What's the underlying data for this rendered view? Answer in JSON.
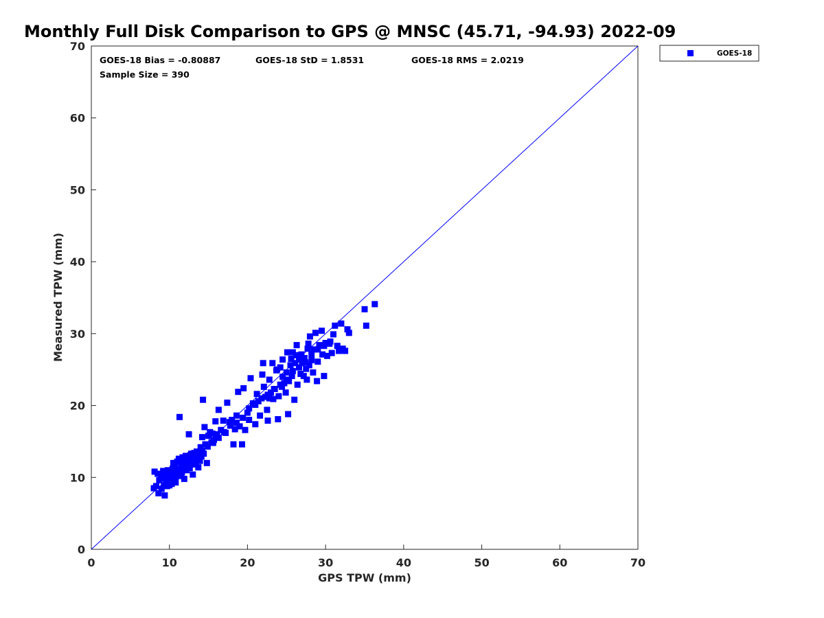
{
  "chart_data": {
    "type": "scatter",
    "title": "Monthly Full Disk Comparison to GPS @ MNSC (45.71, -94.93) 2022-09",
    "xlabel": "GPS TPW (mm)",
    "ylabel": "Measured TPW (mm)",
    "xlim": [
      0,
      70
    ],
    "ylim": [
      0,
      70
    ],
    "xticks": [
      "0",
      "10",
      "20",
      "30",
      "40",
      "50",
      "60",
      "70"
    ],
    "yticks": [
      "0",
      "10",
      "20",
      "30",
      "40",
      "50",
      "60",
      "70"
    ],
    "grid": false,
    "legend_position": "outside-top-right",
    "stats": {
      "bias": "GOES-18 Bias = -0.80887",
      "std": "GOES-18 StD = 1.8531",
      "rms": "GOES-18 RMS = 2.0219",
      "sample": "Sample Size = 390"
    },
    "reference_line": {
      "name": "1:1",
      "color": "#0000ff",
      "x": [
        0,
        70
      ],
      "y": [
        0,
        70
      ]
    },
    "series": [
      {
        "name": "GOES-18",
        "color": "#0000ff",
        "marker": "square",
        "points": [
          [
            8.0,
            8.5
          ],
          [
            8.1,
            10.8
          ],
          [
            8.3,
            8.8
          ],
          [
            8.5,
            10.5
          ],
          [
            8.6,
            7.8
          ],
          [
            8.7,
            9.6
          ],
          [
            8.9,
            10.2
          ],
          [
            9.0,
            8.4
          ],
          [
            9.1,
            9.9
          ],
          [
            9.2,
            10.9
          ],
          [
            9.3,
            8.9
          ],
          [
            9.4,
            7.5
          ],
          [
            9.5,
            10.6
          ],
          [
            9.6,
            9.3
          ],
          [
            9.7,
            8.8
          ],
          [
            9.8,
            10.1
          ],
          [
            9.9,
            9.6
          ],
          [
            10.0,
            8.9
          ],
          [
            10.1,
            9.8
          ],
          [
            10.2,
            10.4
          ],
          [
            10.3,
            9.1
          ],
          [
            10.4,
            11.2
          ],
          [
            10.5,
            9.6
          ],
          [
            10.6,
            10.8
          ],
          [
            10.7,
            11.8
          ],
          [
            10.8,
            9.3
          ],
          [
            10.9,
            10.6
          ],
          [
            11.0,
            12.2
          ],
          [
            11.1,
            11.1
          ],
          [
            11.2,
            10.2
          ],
          [
            11.3,
            18.4
          ],
          [
            11.4,
            12.4
          ],
          [
            11.5,
            11.6
          ],
          [
            11.6,
            10.7
          ],
          [
            11.7,
            12.8
          ],
          [
            11.8,
            11.4
          ],
          [
            11.9,
            9.8
          ],
          [
            12.0,
            12.0
          ],
          [
            12.1,
            13.0
          ],
          [
            12.2,
            11.7
          ],
          [
            12.3,
            12.6
          ],
          [
            12.5,
            16.0
          ],
          [
            12.6,
            11.3
          ],
          [
            12.7,
            13.1
          ],
          [
            12.8,
            12.2
          ],
          [
            12.9,
            12.9
          ],
          [
            13.0,
            10.4
          ],
          [
            13.2,
            13.4
          ],
          [
            13.3,
            12.1
          ],
          [
            13.4,
            11.9
          ],
          [
            13.5,
            13.6
          ],
          [
            13.6,
            12.6
          ],
          [
            13.7,
            11.4
          ],
          [
            13.8,
            13.1
          ],
          [
            13.9,
            12.3
          ],
          [
            14.0,
            14.2
          ],
          [
            14.1,
            12.9
          ],
          [
            14.2,
            15.6
          ],
          [
            14.3,
            20.8
          ],
          [
            14.4,
            13.3
          ],
          [
            14.5,
            17.0
          ],
          [
            14.6,
            14.6
          ],
          [
            14.8,
            12.0
          ],
          [
            15.0,
            15.8
          ],
          [
            15.2,
            16.3
          ],
          [
            15.4,
            14.9
          ],
          [
            15.5,
            16.1
          ],
          [
            15.7,
            15.2
          ],
          [
            15.9,
            17.8
          ],
          [
            16.1,
            16.0
          ],
          [
            16.3,
            19.4
          ],
          [
            16.6,
            16.6
          ],
          [
            16.9,
            17.9
          ],
          [
            17.2,
            16.2
          ],
          [
            17.4,
            20.4
          ],
          [
            17.7,
            17.7
          ],
          [
            18.0,
            18.0
          ],
          [
            18.2,
            14.6
          ],
          [
            18.4,
            16.7
          ],
          [
            18.6,
            18.6
          ],
          [
            18.8,
            21.9
          ],
          [
            19.0,
            17.1
          ],
          [
            19.3,
            14.6
          ],
          [
            19.5,
            22.4
          ],
          [
            19.7,
            16.6
          ],
          [
            20.0,
            19.0
          ],
          [
            20.2,
            18.0
          ],
          [
            20.4,
            23.8
          ],
          [
            20.7,
            20.3
          ],
          [
            21.0,
            17.4
          ],
          [
            21.2,
            21.6
          ],
          [
            21.4,
            20.6
          ],
          [
            21.6,
            18.6
          ],
          [
            21.9,
            24.3
          ],
          [
            22.0,
            25.9
          ],
          [
            22.1,
            22.6
          ],
          [
            22.3,
            21.2
          ],
          [
            22.5,
            19.4
          ],
          [
            22.6,
            17.9
          ],
          [
            22.8,
            23.6
          ],
          [
            23.0,
            21.8
          ],
          [
            23.2,
            25.9
          ],
          [
            23.3,
            20.9
          ],
          [
            23.5,
            22.3
          ],
          [
            23.7,
            24.9
          ],
          [
            23.9,
            18.1
          ],
          [
            24.0,
            21.3
          ],
          [
            24.2,
            25.3
          ],
          [
            24.4,
            22.6
          ],
          [
            24.5,
            26.4
          ],
          [
            24.7,
            23.1
          ],
          [
            24.9,
            21.8
          ],
          [
            25.0,
            24.6
          ],
          [
            25.1,
            27.4
          ],
          [
            25.2,
            18.8
          ],
          [
            25.3,
            23.4
          ],
          [
            25.5,
            25.6
          ],
          [
            25.7,
            24.1
          ],
          [
            25.8,
            27.4
          ],
          [
            26.0,
            20.8
          ],
          [
            26.1,
            25.9
          ],
          [
            26.3,
            28.4
          ],
          [
            26.4,
            22.9
          ],
          [
            26.6,
            26.4
          ],
          [
            26.8,
            24.4
          ],
          [
            26.9,
            27.1
          ],
          [
            27.0,
            25.9
          ],
          [
            27.2,
            24.1
          ],
          [
            27.3,
            26.6
          ],
          [
            27.5,
            25.1
          ],
          [
            27.6,
            23.6
          ],
          [
            27.7,
            27.9
          ],
          [
            27.9,
            25.6
          ],
          [
            28.0,
            29.6
          ],
          [
            28.2,
            26.3
          ],
          [
            28.4,
            24.6
          ],
          [
            28.5,
            27.8
          ],
          [
            28.7,
            30.1
          ],
          [
            28.9,
            23.4
          ],
          [
            29.0,
            26.1
          ],
          [
            29.2,
            28.4
          ],
          [
            29.5,
            30.4
          ],
          [
            29.6,
            27.1
          ],
          [
            29.8,
            24.1
          ],
          [
            30.0,
            28.7
          ],
          [
            30.2,
            26.9
          ],
          [
            30.5,
            28.6
          ],
          [
            30.8,
            27.3
          ],
          [
            31.0,
            29.9
          ],
          [
            31.2,
            31.1
          ],
          [
            31.5,
            28.3
          ],
          [
            31.7,
            27.6
          ],
          [
            32.0,
            31.4
          ],
          [
            32.2,
            27.9
          ],
          [
            32.5,
            27.6
          ],
          [
            32.8,
            30.6
          ],
          [
            33.0,
            30.1
          ],
          [
            35.0,
            33.4
          ],
          [
            35.2,
            31.1
          ],
          [
            36.3,
            34.1
          ],
          [
            9.5,
            9.0
          ],
          [
            10.2,
            9.5
          ],
          [
            10.8,
            10.1
          ],
          [
            11.5,
            10.5
          ],
          [
            12.2,
            11.0
          ],
          [
            13.0,
            11.8
          ],
          [
            9.8,
            11.0
          ],
          [
            10.5,
            12.0
          ],
          [
            11.2,
            12.6
          ],
          [
            12.0,
            12.4
          ],
          [
            12.8,
            13.3
          ],
          [
            13.5,
            12.8
          ],
          [
            14.2,
            13.7
          ],
          [
            14.9,
            14.3
          ],
          [
            15.6,
            14.8
          ],
          [
            16.3,
            15.5
          ],
          [
            17.0,
            16.3
          ],
          [
            17.8,
            17.2
          ],
          [
            18.6,
            17.6
          ],
          [
            19.4,
            18.3
          ],
          [
            20.2,
            19.6
          ],
          [
            21.0,
            20.1
          ],
          [
            21.8,
            21.0
          ],
          [
            22.6,
            21.5
          ],
          [
            23.4,
            22.3
          ],
          [
            24.2,
            22.9
          ],
          [
            25.0,
            23.6
          ],
          [
            25.8,
            24.8
          ],
          [
            26.6,
            25.3
          ],
          [
            27.4,
            26.0
          ],
          [
            28.2,
            27.1
          ],
          [
            29.0,
            27.8
          ],
          [
            29.8,
            28.3
          ],
          [
            30.6,
            28.9
          ],
          [
            24.5,
            24.0
          ],
          [
            23.8,
            25.0
          ],
          [
            26.2,
            27.0
          ],
          [
            27.8,
            28.6
          ],
          [
            25.6,
            26.5
          ],
          [
            22.8,
            21.0
          ]
        ]
      }
    ]
  }
}
